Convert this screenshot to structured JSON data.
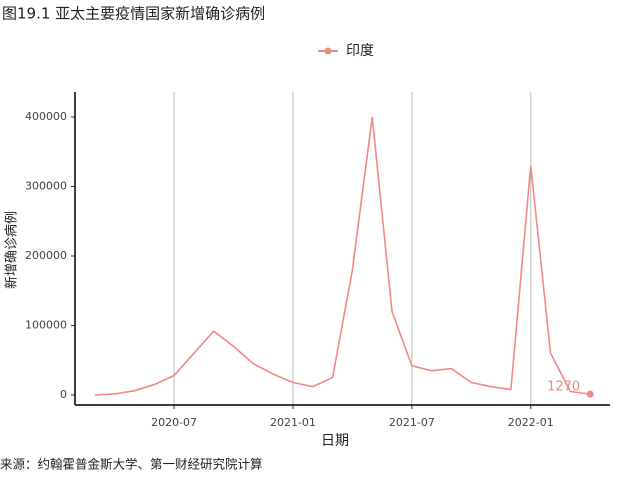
{
  "chart_data": {
    "type": "line",
    "title": "图19.1 亚太主要疫情国家新增确诊病例",
    "x_label": "日期",
    "y_label": "新增确诊病例",
    "source": "来源：约翰霍普金斯大学、第一财经研究院计算",
    "x": [
      "2020-03",
      "2020-04",
      "2020-05",
      "2020-06",
      "2020-07",
      "2020-08",
      "2020-09",
      "2020-10",
      "2020-11",
      "2020-12",
      "2021-01",
      "2021-02",
      "2021-03",
      "2021-04",
      "2021-05",
      "2021-06",
      "2021-07",
      "2021-08",
      "2021-09",
      "2021-10",
      "2021-11",
      "2021-12",
      "2022-01",
      "2022-02",
      "2022-03",
      "2022-04"
    ],
    "series": [
      {
        "name": "印度",
        "color": "#f08a84",
        "values": [
          0,
          1500,
          6000,
          15000,
          28000,
          60000,
          92000,
          70000,
          45000,
          30000,
          18000,
          12000,
          25000,
          180000,
          400000,
          120000,
          42000,
          35000,
          38000,
          18000,
          12000,
          8000,
          330000,
          60000,
          5000,
          1270
        ]
      }
    ],
    "xlim": [
      "2020-02",
      "2022-05"
    ],
    "xticks": [
      "2020-07",
      "2021-01",
      "2021-07",
      "2022-01"
    ],
    "ylim": [
      -14400,
      436000
    ],
    "yticks": [
      0,
      100000,
      200000,
      300000,
      400000
    ],
    "grid": "x",
    "legend": "top"
  }
}
